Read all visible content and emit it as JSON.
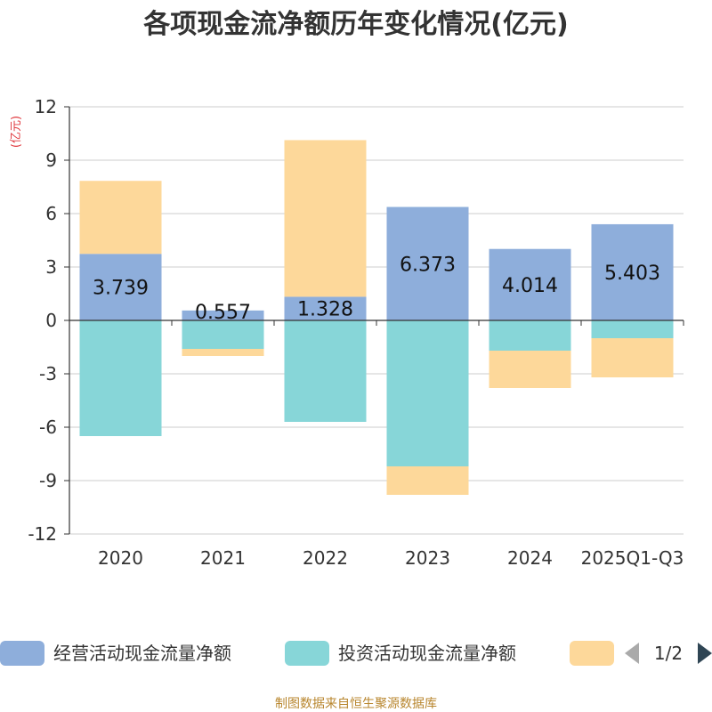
{
  "chart_data": {
    "type": "bar",
    "stacked": true,
    "title": "各项现金流净额历年变化情况(亿元)",
    "ylabel": "(亿元)",
    "ylim": [
      -12,
      12
    ],
    "yticks": [
      12,
      9,
      6,
      3,
      0,
      -3,
      -6,
      -9,
      -12
    ],
    "categories": [
      "2020",
      "2021",
      "2022",
      "2023",
      "2024",
      "2025Q1-Q3"
    ],
    "series": [
      {
        "name": "经营活动现金流量净额",
        "color": "#8eaedb",
        "values": [
          3.739,
          0.557,
          1.328,
          6.373,
          4.014,
          5.403
        ],
        "labels": [
          "3.739",
          "0.557",
          "1.328",
          "6.373",
          "4.014",
          "5.403"
        ]
      },
      {
        "name": "投资活动现金流量净额",
        "color": "#87d6d8",
        "values": [
          -6.5,
          -1.6,
          -5.7,
          -8.2,
          -1.7,
          -1.0
        ]
      },
      {
        "name": "",
        "color": "#fdd89a",
        "values": [
          4.1,
          -0.4,
          8.8,
          -1.6,
          -2.1,
          -2.2
        ]
      }
    ],
    "legend": {
      "page": "1/2",
      "placement": "bottom"
    }
  },
  "source": "制图数据来自恒生聚源数据库"
}
